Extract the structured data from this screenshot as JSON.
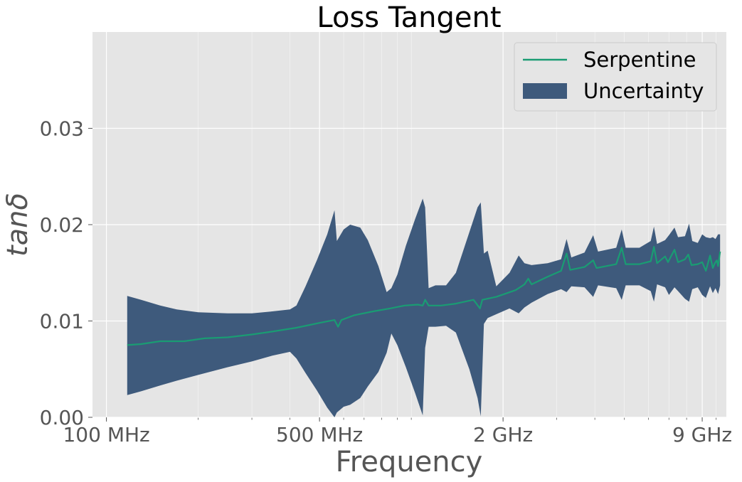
{
  "chart_data": {
    "type": "line",
    "title": "Loss Tangent",
    "xlabel": "Frequency",
    "ylabel": "tanδ",
    "x_scale": "log",
    "x_unit": "Hz",
    "xlim": [
      90000000,
      10800000000
    ],
    "ylim": [
      0,
      0.04
    ],
    "grid": true,
    "legend_position": "top-right",
    "x_ticks": [
      {
        "value": 100000000,
        "label": "100 MHz"
      },
      {
        "value": 500000000,
        "label": "500 MHz"
      },
      {
        "value": 2000000000,
        "label": "2 GHz"
      },
      {
        "value": 9000000000,
        "label": "9 GHz"
      }
    ],
    "y_ticks": [
      {
        "value": 0.0,
        "label": "0.00"
      },
      {
        "value": 0.01,
        "label": "0.01"
      },
      {
        "value": 0.02,
        "label": "0.02"
      },
      {
        "value": 0.03,
        "label": "0.03"
      }
    ],
    "series": [
      {
        "name": "Serpentine",
        "color": "#1a9c73",
        "points": [
          [
            117000000,
            0.0075
          ],
          [
            130000000,
            0.0076
          ],
          [
            150000000,
            0.0079
          ],
          [
            180000000,
            0.0079
          ],
          [
            210000000,
            0.0082
          ],
          [
            250000000,
            0.0083
          ],
          [
            300000000,
            0.0086
          ],
          [
            350000000,
            0.0089
          ],
          [
            420000000,
            0.0093
          ],
          [
            500000000,
            0.0098
          ],
          [
            560000000,
            0.0101
          ],
          [
            575000000,
            0.0094
          ],
          [
            590000000,
            0.0101
          ],
          [
            650000000,
            0.0106
          ],
          [
            750000000,
            0.011
          ],
          [
            850000000,
            0.0113
          ],
          [
            950000000,
            0.0116
          ],
          [
            1050000000,
            0.0117
          ],
          [
            1090000000,
            0.0116
          ],
          [
            1110000000,
            0.0122
          ],
          [
            1140000000,
            0.0116
          ],
          [
            1250000000,
            0.0116
          ],
          [
            1400000000,
            0.0118
          ],
          [
            1600000000,
            0.0122
          ],
          [
            1680000000,
            0.0113
          ],
          [
            1710000000,
            0.0122
          ],
          [
            1900000000,
            0.0125
          ],
          [
            2200000000,
            0.0132
          ],
          [
            2350000000,
            0.0138
          ],
          [
            2420000000,
            0.0144
          ],
          [
            2480000000,
            0.0138
          ],
          [
            2800000000,
            0.0146
          ],
          [
            3100000000,
            0.0152
          ],
          [
            3230000000,
            0.017
          ],
          [
            3320000000,
            0.0153
          ],
          [
            3700000000,
            0.0156
          ],
          [
            3950000000,
            0.0163
          ],
          [
            4050000000,
            0.0155
          ],
          [
            4700000000,
            0.0159
          ],
          [
            4900000000,
            0.0176
          ],
          [
            5050000000,
            0.0159
          ],
          [
            5600000000,
            0.0159
          ],
          [
            6100000000,
            0.0162
          ],
          [
            6250000000,
            0.0177
          ],
          [
            6400000000,
            0.016
          ],
          [
            6800000000,
            0.0167
          ],
          [
            6950000000,
            0.0161
          ],
          [
            7300000000,
            0.0174
          ],
          [
            7500000000,
            0.0161
          ],
          [
            7900000000,
            0.0164
          ],
          [
            8100000000,
            0.0169
          ],
          [
            8300000000,
            0.0158
          ],
          [
            8700000000,
            0.0159
          ],
          [
            9000000000,
            0.0161
          ],
          [
            9250000000,
            0.0152
          ],
          [
            9550000000,
            0.0168
          ],
          [
            9750000000,
            0.0155
          ],
          [
            9900000000,
            0.016
          ],
          [
            10050000000,
            0.0163
          ],
          [
            10150000000,
            0.0157
          ],
          [
            10300000000,
            0.0172
          ]
        ]
      }
    ],
    "uncertainty": {
      "name": "Uncertainty",
      "color": "#3e5a7c",
      "points": [
        [
          117000000,
          0.0023,
          0.0126
        ],
        [
          130000000,
          0.0027,
          0.0122
        ],
        [
          150000000,
          0.0033,
          0.0116
        ],
        [
          170000000,
          0.0038,
          0.0112
        ],
        [
          200000000,
          0.0044,
          0.0109
        ],
        [
          250000000,
          0.0052,
          0.0108
        ],
        [
          300000000,
          0.0058,
          0.0108
        ],
        [
          350000000,
          0.0064,
          0.011
        ],
        [
          400000000,
          0.0068,
          0.0112
        ],
        [
          420000000,
          0.0061,
          0.0116
        ],
        [
          450000000,
          0.0046,
          0.0136
        ],
        [
          490000000,
          0.0028,
          0.0163
        ],
        [
          530000000,
          0.001,
          0.019
        ],
        [
          560000000,
          -0.0004,
          0.0215
        ],
        [
          570000000,
          0.0005,
          0.0183
        ],
        [
          600000000,
          0.0011,
          0.0195
        ],
        [
          630000000,
          0.0013,
          0.02
        ],
        [
          680000000,
          0.002,
          0.0197
        ],
        [
          720000000,
          0.0032,
          0.0184
        ],
        [
          780000000,
          0.0047,
          0.0157
        ],
        [
          830000000,
          0.0067,
          0.013
        ],
        [
          860000000,
          0.0087,
          0.0134
        ],
        [
          900000000,
          0.0075,
          0.0148
        ],
        [
          960000000,
          0.0052,
          0.0178
        ],
        [
          1030000000,
          0.0025,
          0.0206
        ],
        [
          1090000000,
          0.0002,
          0.0227
        ],
        [
          1110000000,
          0.0072,
          0.0218
        ],
        [
          1140000000,
          0.0094,
          0.0134
        ],
        [
          1200000000,
          0.0094,
          0.0137
        ],
        [
          1300000000,
          0.0095,
          0.0137
        ],
        [
          1400000000,
          0.0088,
          0.015
        ],
        [
          1550000000,
          0.005,
          0.0192
        ],
        [
          1650000000,
          0.002,
          0.0218
        ],
        [
          1690000000,
          0.0001,
          0.0223
        ],
        [
          1730000000,
          0.0097,
          0.017
        ],
        [
          1780000000,
          0.0103,
          0.0173
        ],
        [
          1900000000,
          0.0107,
          0.0136
        ],
        [
          2100000000,
          0.0113,
          0.015
        ],
        [
          2250000000,
          0.0108,
          0.0168
        ],
        [
          2350000000,
          0.0114,
          0.016
        ],
        [
          2480000000,
          0.0119,
          0.0158
        ],
        [
          2800000000,
          0.0128,
          0.016
        ],
        [
          3100000000,
          0.0133,
          0.0164
        ],
        [
          3230000000,
          0.013,
          0.0185
        ],
        [
          3350000000,
          0.0136,
          0.0166
        ],
        [
          3700000000,
          0.0135,
          0.0171
        ],
        [
          3950000000,
          0.0125,
          0.0189
        ],
        [
          4100000000,
          0.0137,
          0.0172
        ],
        [
          4700000000,
          0.0134,
          0.0176
        ],
        [
          4900000000,
          0.0122,
          0.0195
        ],
        [
          5050000000,
          0.0137,
          0.0176
        ],
        [
          5600000000,
          0.0137,
          0.0176
        ],
        [
          6100000000,
          0.0131,
          0.0183
        ],
        [
          6250000000,
          0.012,
          0.0198
        ],
        [
          6400000000,
          0.0138,
          0.018
        ],
        [
          6800000000,
          0.0135,
          0.0184
        ],
        [
          7000000000,
          0.0127,
          0.0189
        ],
        [
          7300000000,
          0.0135,
          0.0197
        ],
        [
          7500000000,
          0.0131,
          0.0187
        ],
        [
          7900000000,
          0.0123,
          0.0188
        ],
        [
          8150000000,
          0.012,
          0.0201
        ],
        [
          8350000000,
          0.0133,
          0.0183
        ],
        [
          8700000000,
          0.0135,
          0.0181
        ],
        [
          9000000000,
          0.0127,
          0.019
        ],
        [
          9250000000,
          0.0124,
          0.0187
        ],
        [
          9550000000,
          0.0136,
          0.0186
        ],
        [
          9750000000,
          0.0129,
          0.0187
        ],
        [
          9950000000,
          0.0134,
          0.0185
        ],
        [
          10150000000,
          0.0128,
          0.019
        ],
        [
          10300000000,
          0.0137,
          0.019
        ]
      ]
    }
  }
}
